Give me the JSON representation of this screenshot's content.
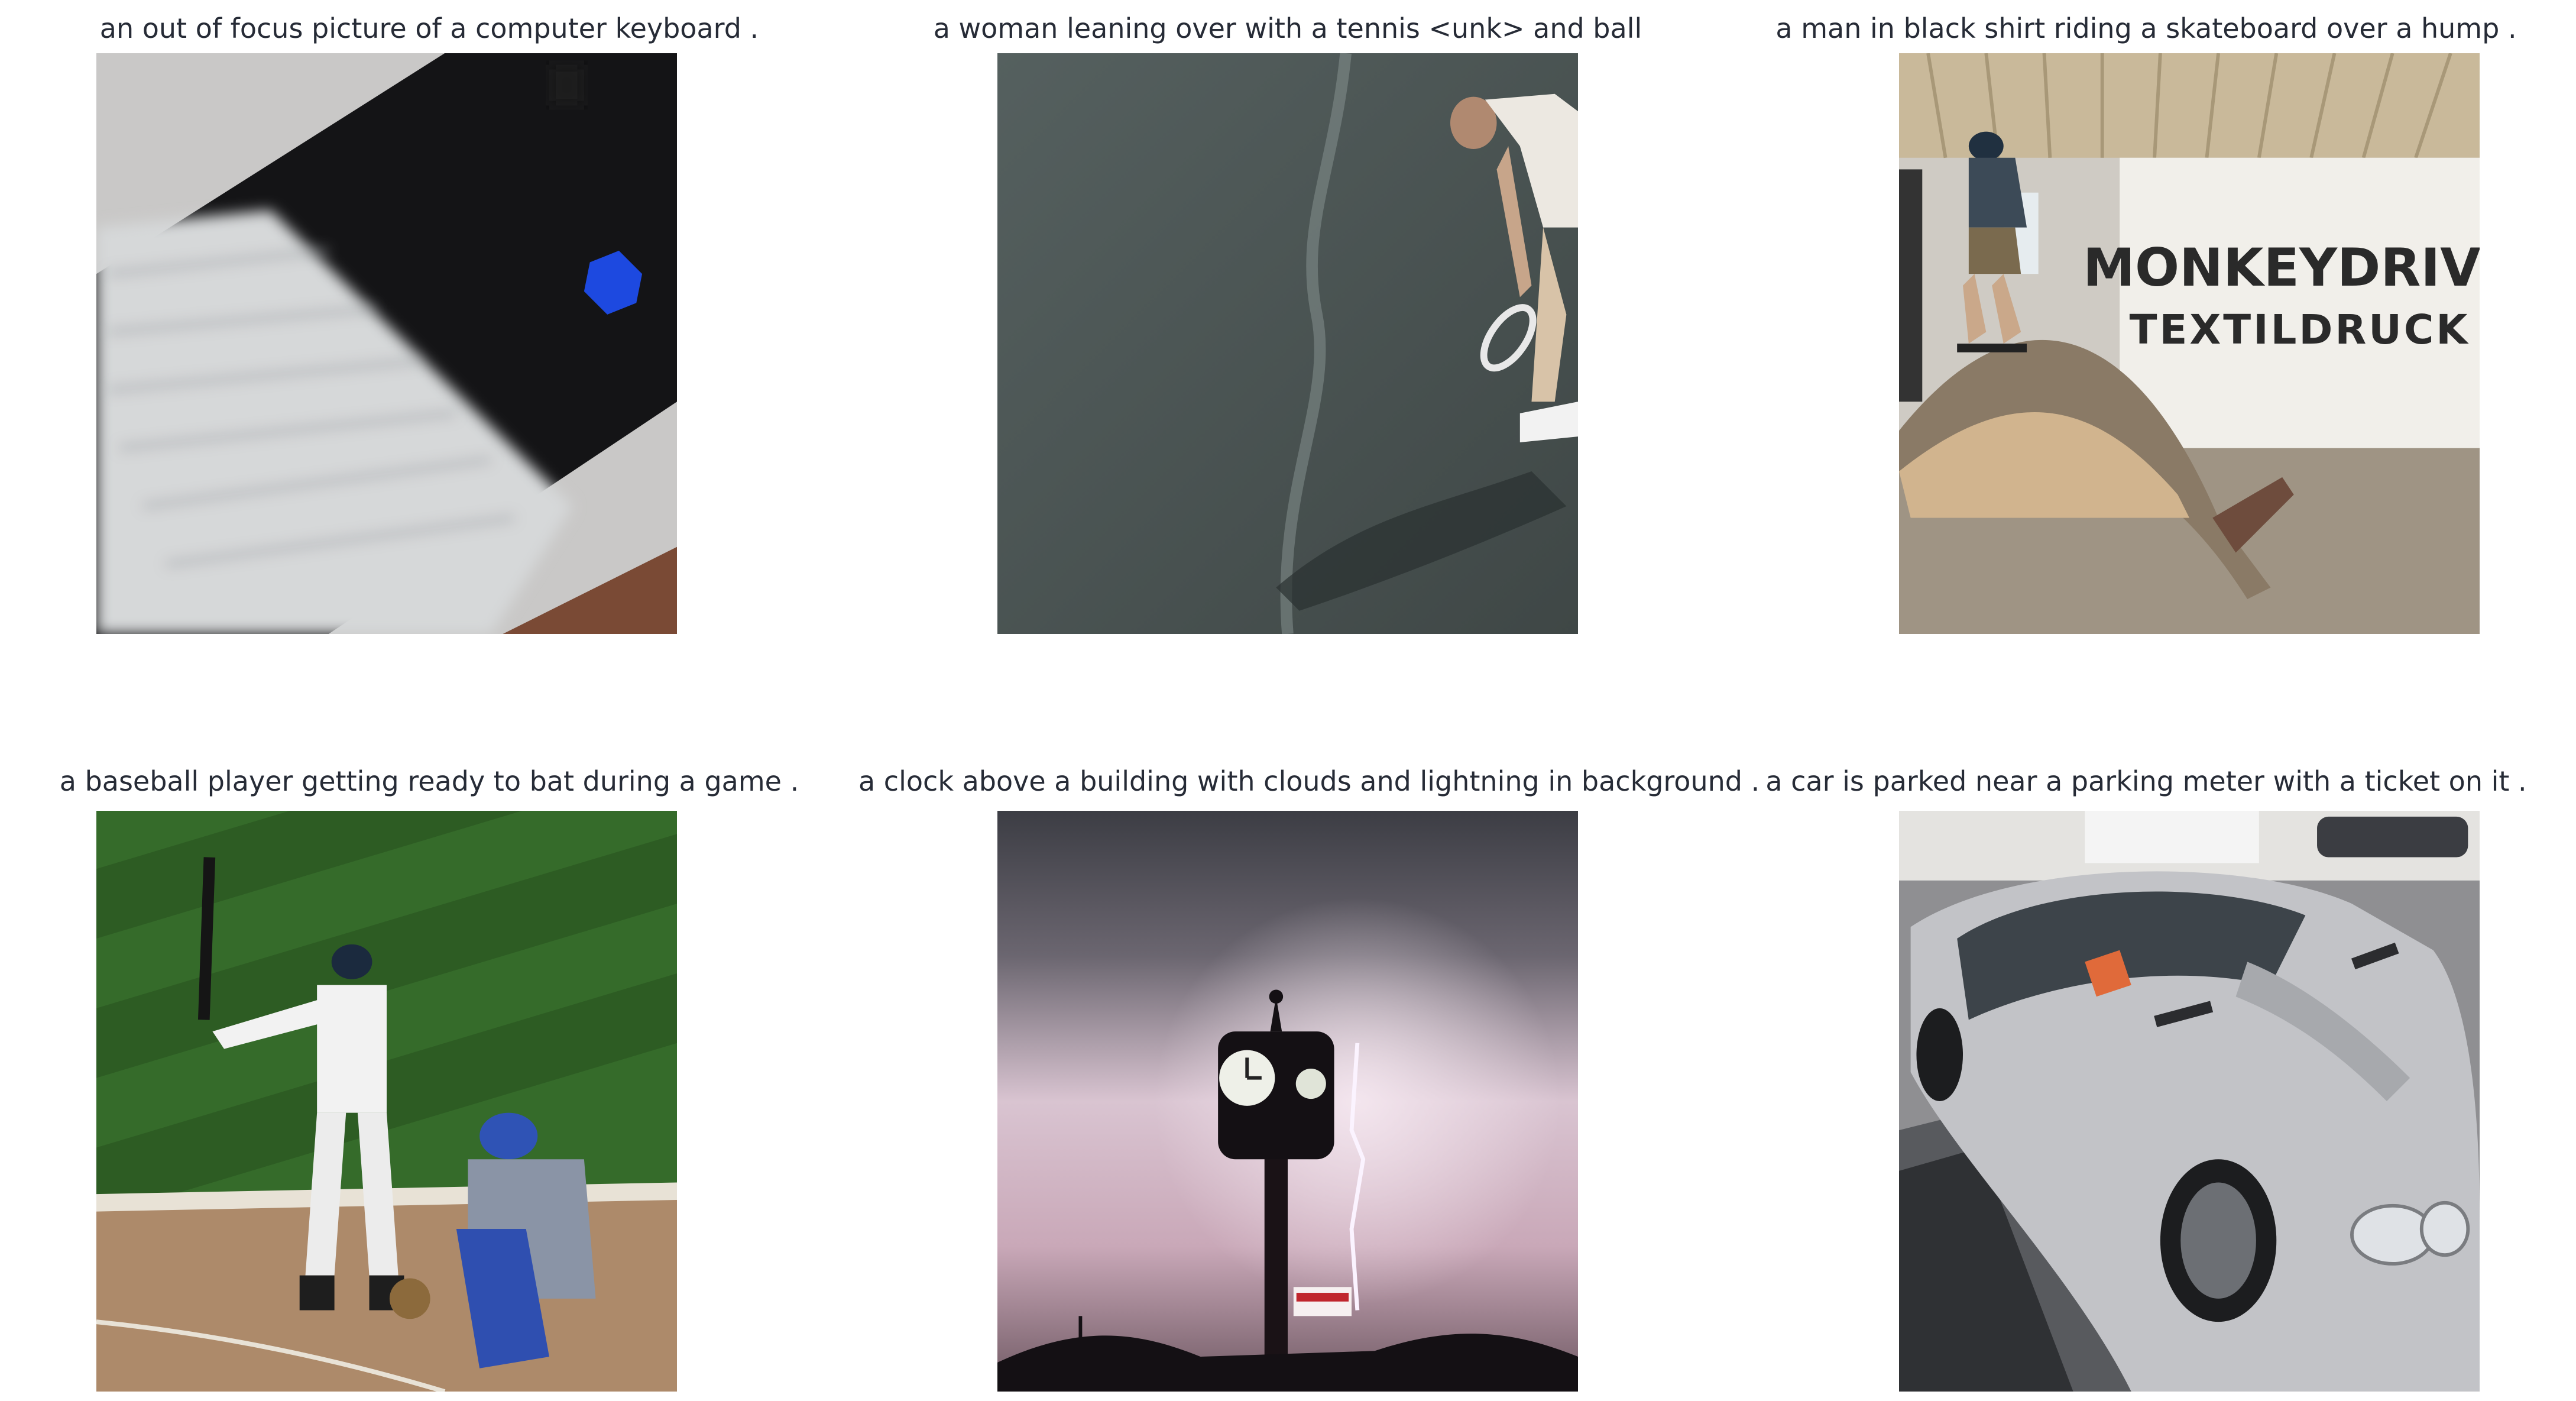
{
  "figure": {
    "panels": [
      {
        "caption": "an out of focus picture of a computer keyboard .",
        "image": "blurred-keyboard-photo"
      },
      {
        "caption": "a woman leaning over with a tennis <unk> and ball",
        "image": "tennis-player-photo"
      },
      {
        "caption": "a man in black shirt riding a skateboard over a hump .",
        "image": "skateboard-ramp-photo"
      },
      {
        "caption": "a baseball player getting ready to bat during a game .",
        "image": "baseball-batter-photo"
      },
      {
        "caption": "a clock above a building with clouds and lightning in background .",
        "image": "clock-lightning-photo"
      },
      {
        "caption": "a car is parked near a parking meter with a ticket on it .",
        "image": "silver-car-photo"
      }
    ],
    "sign_text": {
      "banner_line1": "MONKEYDRIVE",
      "banner_line2": "TEXTILDRUCK"
    }
  }
}
